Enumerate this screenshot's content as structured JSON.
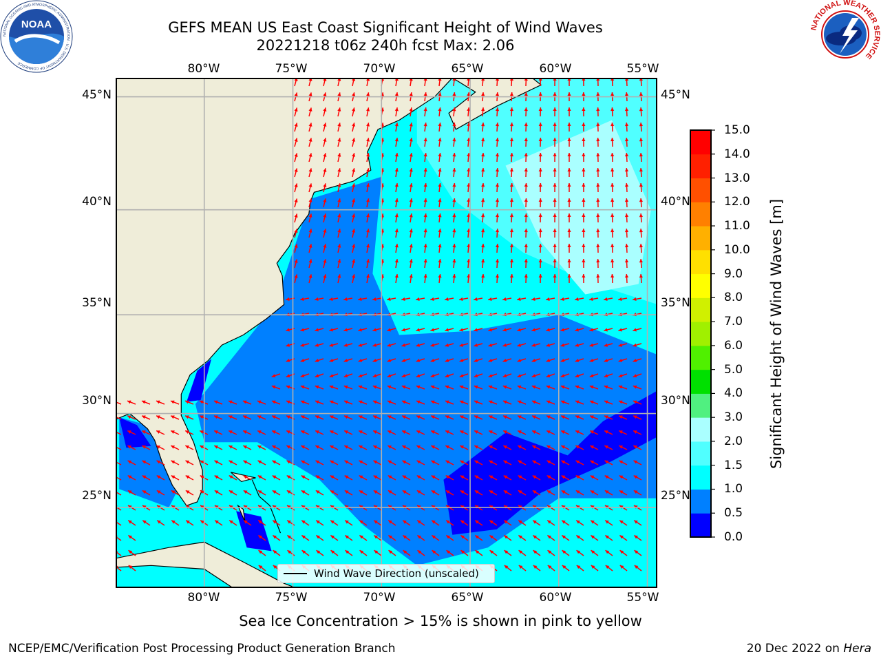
{
  "title": {
    "line1": "GEFS MEAN US East Coast Significant Height of Wind Waves",
    "line2": "20221218 t06z 240h fcst   Max: 2.06"
  },
  "map": {
    "lon_labels": [
      "80°W",
      "75°W",
      "70°W",
      "65°W",
      "60°W",
      "55°W"
    ],
    "lat_labels": [
      "45°N",
      "40°N",
      "35°N",
      "30°N",
      "25°N"
    ],
    "extent": {
      "lon_min": -85,
      "lon_max": -54.4,
      "lat_min": 20.5,
      "lat_max": 45.8
    },
    "colors": {
      "land": "#efedd9",
      "coast": "#000000",
      "arrow": "#ff0000",
      "grid": "#b0b0b0"
    }
  },
  "legend": {
    "label": "Wind Wave Direction (unscaled)"
  },
  "colorbar": {
    "title": "Significant Height of Wind Waves [m]",
    "levels": [
      0.0,
      0.5,
      1.0,
      1.5,
      2.0,
      3.0,
      4.0,
      5.0,
      6.0,
      7.0,
      8.0,
      9.0,
      10.0,
      11.0,
      12.0,
      13.0,
      14.0,
      15.0
    ],
    "tick_labels": [
      "0.0",
      "0.5",
      "1.0",
      "1.5",
      "2.0",
      "3.0",
      "4.0",
      "5.0",
      "6.0",
      "7.0",
      "8.0",
      "9.0",
      "10.0",
      "11.0",
      "12.0",
      "13.0",
      "14.0",
      "15.0"
    ],
    "colors": [
      "#0000ff",
      "#0080ff",
      "#00ffff",
      "#50ffff",
      "#aaffff",
      "#50f080",
      "#00e000",
      "#50f000",
      "#a0f000",
      "#d0f000",
      "#ffff00",
      "#ffe000",
      "#ffb000",
      "#ff8000",
      "#ff5000",
      "#ff2000",
      "#ff0000"
    ]
  },
  "note": "Sea Ice Concentration > 15% is shown in pink to yellow",
  "footer": {
    "left": "NCEP/EMC/Verification Post Processing Product Generation Branch",
    "right_date": "20 Dec 2022 on",
    "right_host": "Hera"
  },
  "logos": {
    "left": {
      "name": "NOAA",
      "ring_text": "NATIONAL OCEANIC AND ATMOSPHERIC ADMINISTRATION · U.S. DEPARTMENT OF COMMERCE"
    },
    "right": {
      "ring_text": "NATIONAL WEATHER SERVICE"
    }
  }
}
